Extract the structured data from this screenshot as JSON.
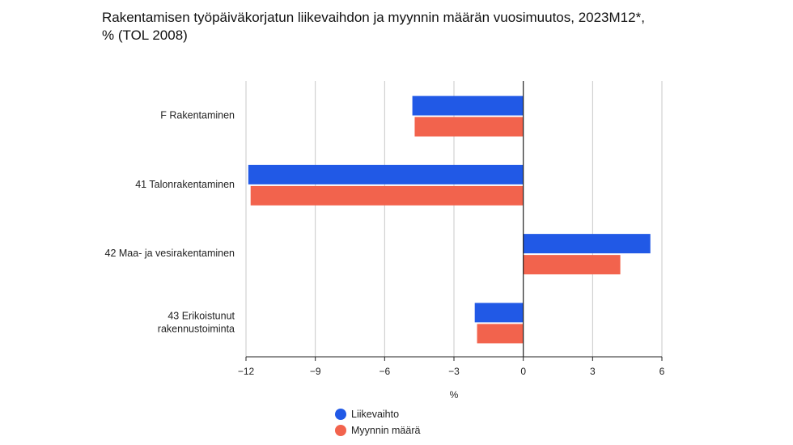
{
  "chart_data": {
    "type": "bar",
    "orientation": "horizontal",
    "title_lines": [
      "Rakentamisen työpäiväkorjatun liikevaihdon ja myynnin määrän vuosimuutos, 2023M12*,",
      "% (TOL 2008)"
    ],
    "xlabel": "%",
    "xlim": [
      -12,
      6
    ],
    "xticks": [
      -12,
      -9,
      -6,
      -3,
      0,
      3,
      6
    ],
    "xtick_labels": [
      "−12",
      "−9",
      "−6",
      "−3",
      "0",
      "3",
      "6"
    ],
    "categories": [
      [
        "F Rakentaminen"
      ],
      [
        "41 Talonrakentaminen"
      ],
      [
        "42 Maa- ja vesirakentaminen"
      ],
      [
        "43 Erikoistunut",
        "rakennustoiminta"
      ]
    ],
    "series": [
      {
        "name": "Liikevaihto",
        "color": "#2159e6",
        "values": [
          -4.8,
          -11.9,
          5.5,
          -2.1
        ]
      },
      {
        "name": "Myynnin määrä",
        "color": "#f2634d",
        "values": [
          -4.7,
          -11.8,
          4.2,
          -2.0
        ]
      }
    ],
    "grid": true,
    "legend_position": "bottom"
  }
}
